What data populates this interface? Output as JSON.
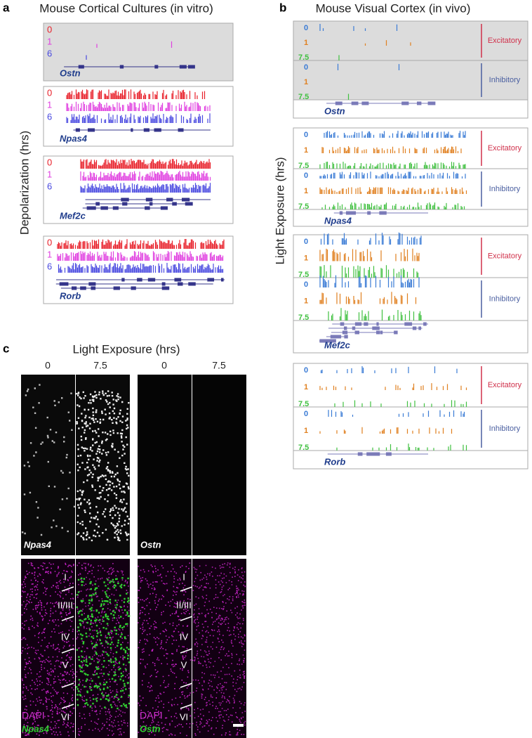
{
  "panel_a": {
    "letter": "a",
    "title": "Mouse Cortical Cultures (in vitro)",
    "y_label": "Depolarization (hrs)",
    "timepoints": [
      "0",
      "1",
      "6"
    ],
    "genes": [
      "Ostn",
      "Npas4",
      "Mef2c",
      "Rorb"
    ]
  },
  "panel_b": {
    "letter": "b",
    "title": "Mouse Visual Cortex (in vivo)",
    "y_label": "Light Exposure (hrs)",
    "timepoints": [
      "0",
      "1",
      "7.5"
    ],
    "cell_types": [
      "Excitatory",
      "Inhibitory"
    ],
    "genes": [
      "Ostn",
      "Npas4",
      "Mef2c",
      "Rorb"
    ]
  },
  "panel_c": {
    "letter": "c",
    "title": "Light Exposure (hrs)",
    "columns": [
      "0",
      "7.5",
      "0",
      "7.5"
    ],
    "probes": [
      "Npas4",
      "Ostn"
    ],
    "layers": [
      "I",
      "II/III",
      "IV",
      "V",
      "VI"
    ],
    "stain": "DAPI"
  }
}
